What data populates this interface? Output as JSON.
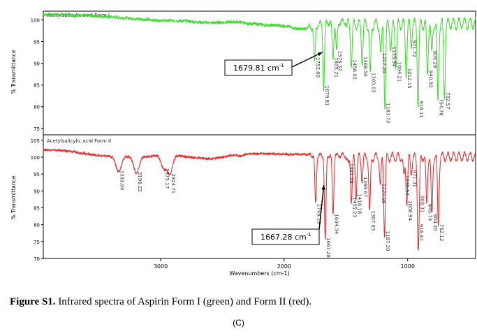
{
  "chart_data": {
    "type": "line",
    "xlabel": "Wavenumbers (cm-1)",
    "x_reversed": true,
    "xlim": [
      3950,
      450
    ],
    "x_ticks": [
      3000,
      2000,
      1000
    ],
    "grid": false,
    "panels": [
      {
        "id": "top",
        "title": "Acetylsalicylic acid Form I",
        "ylabel": "% Transmittance",
        "ylim": [
          74,
          102
        ],
        "y_ticks": [
          75,
          80,
          85,
          90,
          95,
          100
        ],
        "series": [
          {
            "color": "#33dd22",
            "baseline": 100.5,
            "broad_features": [
              {
                "x": 3300,
                "depth": 0.6,
                "width": 350
              },
              {
                "x": 2950,
                "depth": 0.8,
                "width": 250
              },
              {
                "x": 2600,
                "depth": 1.0,
                "width": 200
              },
              {
                "x": 2300,
                "depth": 0.3,
                "width": 20
              },
              {
                "x": 2120,
                "depth": 1.2,
                "width": 260
              },
              {
                "x": 1850,
                "depth": 1.5,
                "width": 120
              }
            ],
            "peaks": [
              {
                "x": 1753.6,
                "y": 92.0
              },
              {
                "x": 1679.81,
                "y": 85.5
              },
              {
                "x": 1605.21,
                "y": 92.0
              },
              {
                "x": 1575.37,
                "y": 93.5
              },
              {
                "x": 1456.02,
                "y": 91.5
              },
              {
                "x": 1368.5,
                "y": 92.2
              },
              {
                "x": 1303.03,
                "y": 88.5
              },
              {
                "x": 1217.2,
                "y": 93.0
              },
              {
                "x": 1183.73,
                "y": 81.5
              },
              {
                "x": 1135.94,
                "y": 94.5
              },
              {
                "x": 1094.21,
                "y": 91.0
              },
              {
                "x": 1012.15,
                "y": 89.5
              },
              {
                "x": 971.72,
                "y": 96.0
              },
              {
                "x": 916.11,
                "y": 82.0
              },
              {
                "x": 840.5,
                "y": 89.0
              },
              {
                "x": 805.28,
                "y": 93.5
              },
              {
                "x": 754.78,
                "y": 82.5
              },
              {
                "x": 702.57,
                "y": 84.0
              }
            ]
          }
        ],
        "peak_labels": [
          "1753.60",
          "1679.81",
          "1605.21",
          "1575.37",
          "1456.02",
          "1368.50",
          "1303.03",
          "1217.20",
          "1183.73",
          "1135.94",
          "1094.21",
          "1012.15",
          "971.72",
          "916.11",
          "840.50",
          "805.28",
          "754.78",
          "702.57"
        ],
        "callout": {
          "text": "1679.81 cm",
          "sup": "-1",
          "x": 1679.81
        }
      },
      {
        "id": "bottom",
        "title": "Acetylsalicylic acid Form II",
        "ylabel": "% Transmittance",
        "ylim": [
          70,
          106
        ],
        "y_ticks": [
          70,
          75,
          80,
          85,
          90,
          95,
          100,
          105
        ],
        "series": [
          {
            "color": "#ee2222",
            "baseline": 101.5,
            "broad_features": [
              {
                "x": 3400,
                "depth": 2.0,
                "width": 300
              },
              {
                "x": 3100,
                "depth": 1.0,
                "width": 150
              },
              {
                "x": 2750,
                "depth": 1.5,
                "width": 200
              },
              {
                "x": 2550,
                "depth": 1.2,
                "width": 150
              },
              {
                "x": 2350,
                "depth": 0.6,
                "width": 40
              }
            ],
            "peaks": [
              {
                "x": 3339.9,
                "y": 97.0
              },
              {
                "x": 3196.22,
                "y": 96.5
              },
              {
                "x": 2975.17,
                "y": 97.5
              },
              {
                "x": 2924.71,
                "y": 96.0
              },
              {
                "x": 1745.13,
                "y": 87.0
              },
              {
                "x": 1667.28,
                "y": 76.0
              },
              {
                "x": 1604.34,
                "y": 84.0
              },
              {
                "x": 1481.28,
                "y": 99.0
              },
              {
                "x": 1455.23,
                "y": 89.0
              },
              {
                "x": 1418.18,
                "y": 90.0
              },
              {
                "x": 1369.67,
                "y": 95.0
              },
              {
                "x": 1307.63,
                "y": 85.0
              },
              {
                "x": 1220.86,
                "y": 93.0
              },
              {
                "x": 1187.3,
                "y": 79.0
              },
              {
                "x": 1030.57,
                "y": 95.5
              },
              {
                "x": 1006.94,
                "y": 88.0
              },
              {
                "x": 971.31,
                "y": 97.0
              },
              {
                "x": 916.61,
                "y": 81.0
              },
              {
                "x": 908.31,
                "y": 89.5
              },
              {
                "x": 845.74,
                "y": 87.0
              },
              {
                "x": 804.2,
                "y": 84.0
              },
              {
                "x": 752.12,
                "y": 81.0
              }
            ]
          }
        ],
        "peak_labels": [
          "3339.90",
          "3196.22",
          "2975.17",
          "2924.71",
          "1745.13",
          "1667.28",
          "1604.34",
          "1481.28",
          "1455.23",
          "1418.18",
          "1369.67",
          "1307.63",
          "1220.86",
          "1187.30",
          "1030.57",
          "1006.94",
          "971.31",
          "916.61",
          "908.31",
          "845.74",
          "804.20",
          "752.12"
        ],
        "callout": {
          "text": "1667.28 cm",
          "sup": "-1",
          "x": 1667.28
        }
      }
    ]
  },
  "caption": {
    "label": "Figure S1.",
    "text": " Infrared spectra of Aspirin Form I (green) and Form II (red)."
  },
  "sublabel": "(C)"
}
